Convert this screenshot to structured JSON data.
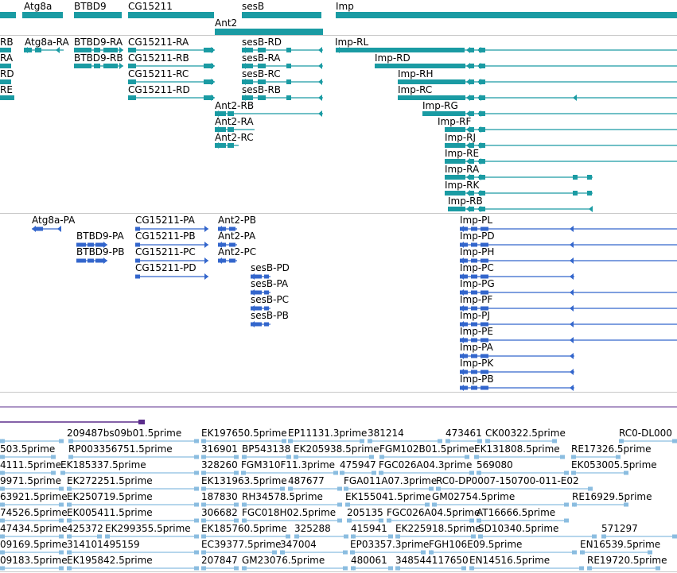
{
  "colors": {
    "teal": "#1a9ba3",
    "teal_line": "#1a9ba3",
    "blue": "#3366cc",
    "light_blue": "#8bbde0",
    "purple": "#5b2d8c",
    "separator": "#c8c8c8"
  },
  "gene_track": {
    "labels": {
      "atg8a": "Atg8a",
      "btbd9": "BTBD9",
      "cg15211": "CG15211",
      "sesb": "sesB",
      "imp": "Imp",
      "ant2": "Ant2"
    }
  },
  "transcript_track": {
    "labels": {
      "rb_left": "RB",
      "ra_left": "RA",
      "rd_left": "RD",
      "re_left": "RE",
      "atg8a_ra": "Atg8a-RA",
      "btbd9_ra": "BTBD9-RA",
      "btbd9_rb": "BTBD9-RB",
      "cg15211_ra": "CG15211-RA",
      "cg15211_rb": "CG15211-RB",
      "cg15211_rc": "CG15211-RC",
      "cg15211_rd": "CG15211-RD",
      "sesb_rd": "sesB-RD",
      "sesb_ra": "sesB-RA",
      "sesb_rc": "sesB-RC",
      "sesb_rb": "sesB-RB",
      "ant2_rb": "Ant2-RB",
      "ant2_ra": "Ant2-RA",
      "ant2_rc": "Ant2-RC",
      "imp_rl": "Imp-RL",
      "imp_rd": "Imp-RD",
      "imp_rh": "Imp-RH",
      "imp_rc": "Imp-RC",
      "imp_rg": "Imp-RG",
      "imp_rf": "Imp-RF",
      "imp_rj": "Imp-RJ",
      "imp_re": "Imp-RE",
      "imp_ra": "Imp-RA",
      "imp_rk": "Imp-RK",
      "imp_rb": "Imp-RB"
    }
  },
  "protein_track": {
    "labels": {
      "atg8a_pa": "Atg8a-PA",
      "btbd9_pa": "BTBD9-PA",
      "btbd9_pb": "BTBD9-PB",
      "cg15211_pa": "CG15211-PA",
      "cg15211_pb": "CG15211-PB",
      "cg15211_pc": "CG15211-PC",
      "cg15211_pd": "CG15211-PD",
      "ant2_pb": "Ant2-PB",
      "ant2_pa": "Ant2-PA",
      "ant2_pc": "Ant2-PC",
      "sesb_pd": "sesB-PD",
      "sesb_pa": "sesB-PA",
      "sesb_pc": "sesB-PC",
      "sesb_pb": "sesB-PB",
      "imp_pl": "Imp-PL",
      "imp_pd": "Imp-PD",
      "imp_ph": "Imp-PH",
      "imp_pc": "Imp-PC",
      "imp_pg": "Imp-PG",
      "imp_pf": "Imp-PF",
      "imp_pj": "Imp-PJ",
      "imp_pe": "Imp-PE",
      "imp_pa": "Imp-PA",
      "imp_pk": "Imp-PK",
      "imp_pb": "Imp-PB"
    }
  },
  "est_track": {
    "labels": [
      "209487bs09b01.5prime",
      "EK197650.5prime",
      "EP11131.3prime",
      "381214",
      "473461",
      "CK00322.5prime",
      "RC0-DL000",
      "503.5prime",
      "RP003356751.5prime",
      "316901",
      "BP543138",
      "EK205938.5prime",
      "FGM102B01.5prime",
      "EK131808.5prime",
      "RE17326.5prime",
      "4111.5prime",
      "EK185337.5prime",
      "328260",
      "FGM310F11.3prime",
      "475947",
      "FGC026A04.3prime",
      "569080",
      "EK053005.5prime",
      "9971.5prime",
      "EK272251.5prime",
      "EK131963.5prime",
      "487677",
      "FGA011A07.3prime",
      "RC0-DP0007-150700-011-E02",
      "63921.5prime",
      "EK250719.5prime",
      "187830",
      "RH34578.5prime",
      "EK155041.5prime",
      "GM02754.5prime",
      "RE16929.5prime",
      "74526.5prime",
      "EK005411.5prime",
      "306682",
      "FGC018H02.5prime",
      "205135",
      "FGC026A04.5prime",
      "AT16666.5prime",
      "47434.5prime",
      "425372",
      "EK299355.5prime",
      "EK185760.5prime",
      "325288",
      "415941",
      "EK225918.5prime",
      "SD10340.5prime",
      "571297",
      "09169.5prime",
      "314101495159",
      "EC39377.5prime",
      "347004",
      "EP03357.3prime",
      "FGH106E09.5prime",
      "EN16539.5prime",
      "09183.5prime",
      "EK195842.5prime",
      "207847",
      "GM23076.5prime",
      "480061",
      "348544117650",
      "EN14516.5prime",
      "RE19720.5prime"
    ]
  }
}
